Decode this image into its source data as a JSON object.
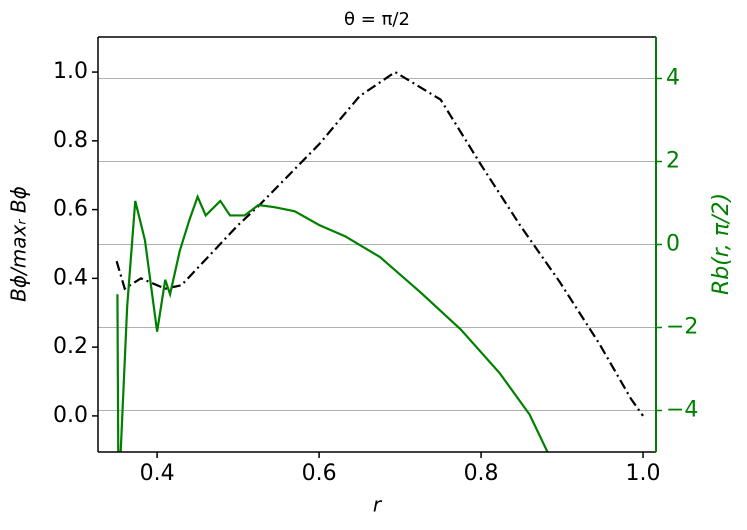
{
  "chart_data": {
    "type": "line",
    "title": "θ = π/2",
    "x_label": "r",
    "y_label": "Bϕ/maxᵣ Bϕ",
    "y2_label": "Rb(r, π/2)",
    "xlim": [
      0.327,
      1.016
    ],
    "ylim": [
      -0.105,
      1.102
    ],
    "y2lim": [
      -5,
      5
    ],
    "xticks": [
      0.4,
      0.6,
      0.8,
      {
        "value": 1,
        "label": "1.0"
      }
    ],
    "yticks": [
      {
        "value": 0,
        "label": "0.0"
      },
      0.2,
      0.4,
      0.6,
      0.8,
      {
        "value": 1,
        "label": "1.0"
      }
    ],
    "y2ticks": [
      {
        "value": -4,
        "label": "−4"
      },
      {
        "value": -2,
        "label": "−2"
      },
      0,
      2,
      4
    ],
    "grid": "y2",
    "y2_color": "#008000",
    "series": [
      {
        "color": "#000000",
        "linestyle": "dashdot",
        "axis": "y",
        "x": [
          0.35,
          0.36,
          0.38,
          0.41,
          0.43,
          0.5,
          0.525,
          0.6,
          0.65,
          0.694,
          0.75,
          0.8,
          0.848,
          0.897,
          0.946,
          0.985,
          1.0
        ],
        "values": [
          0.45,
          0.37,
          0.4,
          0.37,
          0.38,
          0.555,
          0.61,
          0.79,
          0.93,
          1.0,
          0.92,
          0.73,
          0.555,
          0.39,
          0.21,
          0.05,
          0.0
        ]
      },
      {
        "color": "#008000",
        "linestyle": "solid",
        "axis": "y2",
        "x": [
          0.351,
          0.352,
          0.355,
          0.363,
          0.373,
          0.385,
          0.4,
          0.41,
          0.416,
          0.428,
          0.44,
          0.45,
          0.46,
          0.478,
          0.49,
          0.508,
          0.525,
          0.545,
          0.57,
          0.6,
          0.632,
          0.675,
          0.725,
          0.775,
          0.823,
          0.86,
          0.882
        ],
        "values": [
          -1.2,
          -5,
          -5,
          -1.5,
          1.05,
          0.1,
          -2.1,
          -0.85,
          -1.2,
          -0.15,
          0.6,
          1.15,
          0.7,
          1.05,
          0.7,
          0.7,
          0.95,
          0.9,
          0.8,
          0.47,
          0.2,
          -0.3,
          -1.15,
          -2.05,
          -3.1,
          -4.1,
          -5
        ]
      }
    ]
  }
}
